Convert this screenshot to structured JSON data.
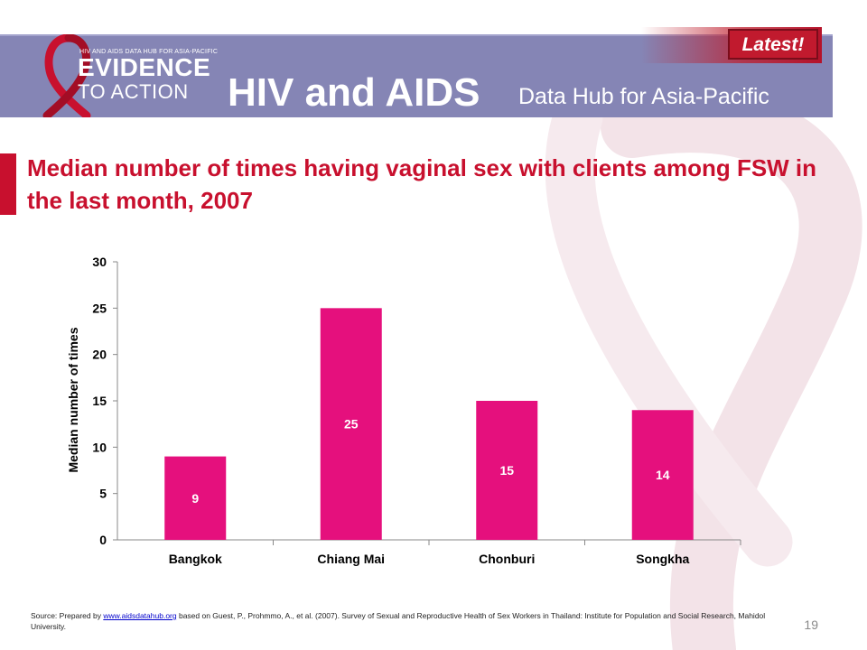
{
  "header": {
    "logo_tagline": "HIV AND AIDS DATA HUB FOR ASIA-PACIFIC",
    "logo_evidence": "EVIDENCE",
    "logo_action": "TO ACTION",
    "title": "HIV and AIDS",
    "subtitle": "Data Hub for Asia-Pacific",
    "latest_badge": "Latest!"
  },
  "slide": {
    "title": "Median number of times having vaginal sex with clients among FSW in the last month, 2007",
    "page_number": "19"
  },
  "source": {
    "prefix": "Source: Prepared by ",
    "link_text": "www.aidsdatahub.org",
    "suffix": " based on Guest, P., Prohmmo, A., et al. (2007). Survey of Sexual and Reproductive Health of Sex Workers in Thailand: Institute for Population and Social Research, Mahidol University."
  },
  "colors": {
    "bar": "#e5107d",
    "header_band": "#8585b5",
    "title_red": "#c8102e"
  },
  "chart_data": {
    "type": "bar",
    "title": "",
    "xlabel": "",
    "ylabel": "Median number of times",
    "categories": [
      "Bangkok",
      "Chiang Mai",
      "Chonburi",
      "Songkha"
    ],
    "values": [
      9,
      25,
      15,
      14
    ],
    "data_labels": [
      "9",
      "25",
      "15",
      "14"
    ],
    "ylim": [
      0,
      30
    ],
    "yticks": [
      0,
      5,
      10,
      15,
      20,
      25,
      30
    ],
    "ytick_labels": [
      "0",
      "5",
      "10",
      "15",
      "20",
      "25",
      "30"
    ],
    "grid": false,
    "legend": "none"
  }
}
